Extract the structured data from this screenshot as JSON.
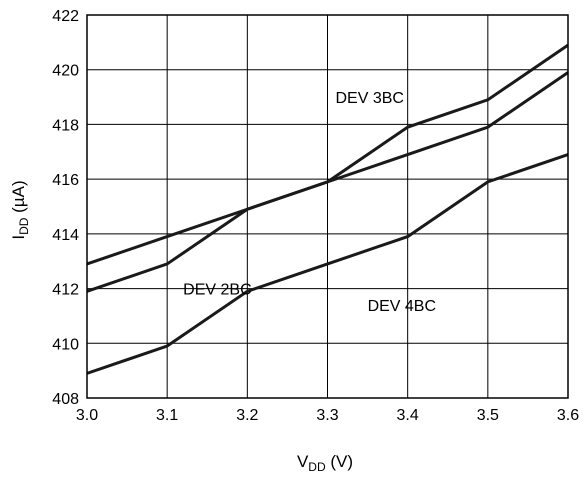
{
  "chart_data": {
    "type": "line",
    "title": "",
    "xlabel": {
      "main": "V",
      "sub": "DD",
      "unit": " (V)"
    },
    "ylabel": {
      "main": "I",
      "sub": "DD",
      "unit_prefix": " (",
      "unit_greek": "µ",
      "unit_suffix": "A)"
    },
    "xlim": [
      3.0,
      3.6
    ],
    "ylim": [
      408,
      422
    ],
    "x_ticks": [
      "3.0",
      "3.1",
      "3.2",
      "3.3",
      "3.4",
      "3.5",
      "3.6"
    ],
    "y_ticks": [
      "408",
      "410",
      "412",
      "414",
      "416",
      "418",
      "420",
      "422"
    ],
    "grid": true,
    "x": [
      3.0,
      3.1,
      3.2,
      3.3,
      3.4,
      3.5,
      3.6
    ],
    "series": [
      {
        "name": "DEV 2BC",
        "values": [
          412.9,
          413.9,
          414.9,
          415.9,
          416.9,
          417.9,
          419.9
        ]
      },
      {
        "name": "DEV 3BC",
        "values": [
          411.9,
          412.9,
          414.9,
          415.9,
          417.9,
          418.9,
          420.9
        ]
      },
      {
        "name": "DEV 4BC",
        "values": [
          408.9,
          409.9,
          411.9,
          412.9,
          413.9,
          415.9,
          416.9
        ]
      }
    ],
    "colors": {
      "line": "#1a1a1a",
      "grid": "#000000"
    }
  }
}
